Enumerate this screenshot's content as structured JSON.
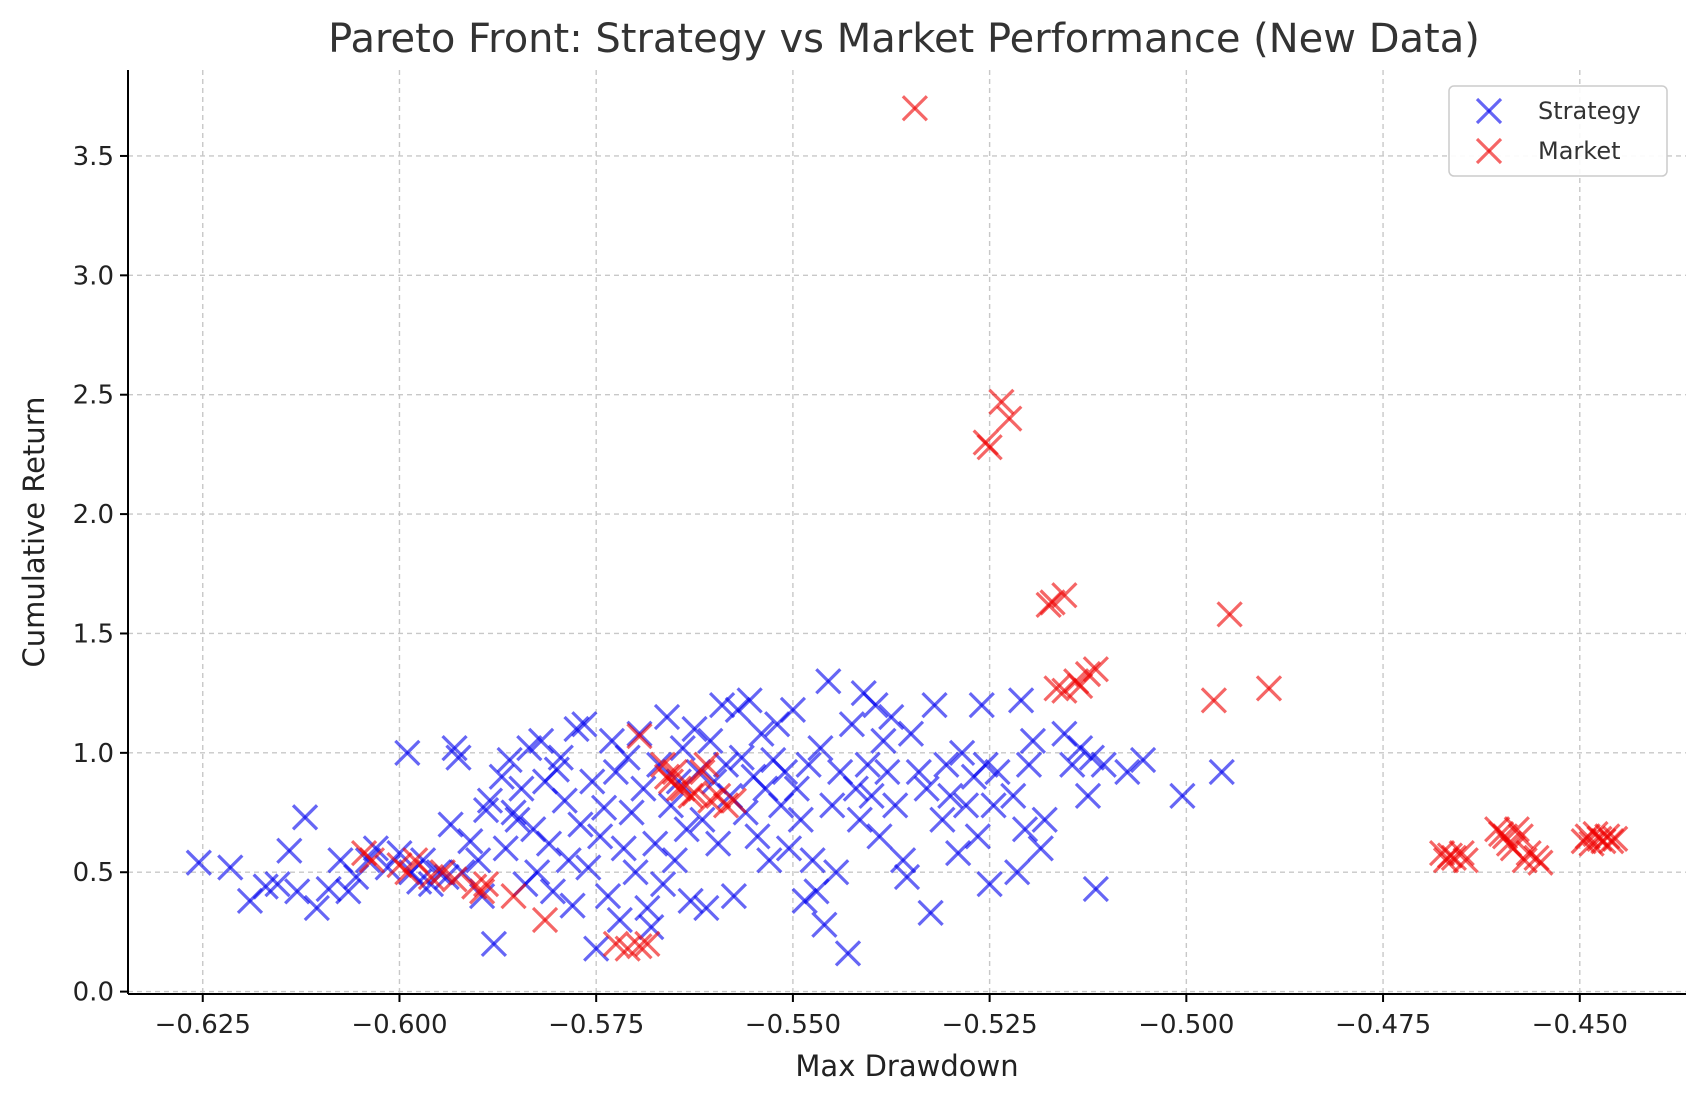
{
  "chart_data": {
    "type": "scatter",
    "title": "Pareto Front: Strategy vs Market Performance (New Data)",
    "xlabel": "Max Drawdown",
    "ylabel": "Cumulative Return",
    "xlim": [
      -0.6345,
      -0.4365
    ],
    "ylim": [
      -0.01,
      3.86
    ],
    "x_ticks": [
      -0.625,
      -0.6,
      -0.575,
      -0.55,
      -0.525,
      -0.5,
      -0.475,
      -0.45
    ],
    "x_tick_labels": [
      "−0.625",
      "−0.600",
      "−0.575",
      "−0.550",
      "−0.525",
      "−0.500",
      "−0.475",
      "−0.450"
    ],
    "y_ticks": [
      0.0,
      0.5,
      1.0,
      1.5,
      2.0,
      2.5,
      3.0,
      3.5
    ],
    "y_tick_labels": [
      "0.0",
      "0.5",
      "1.0",
      "1.5",
      "2.0",
      "2.5",
      "3.0",
      "3.5"
    ],
    "grid": true,
    "legend_position": "top-right",
    "marker": "x",
    "series": [
      {
        "name": "Strategy",
        "color": "#0000ee",
        "points": [
          [
            -0.6255,
            0.54
          ],
          [
            -0.6215,
            0.52
          ],
          [
            -0.619,
            0.38
          ],
          [
            -0.617,
            0.44
          ],
          [
            -0.6155,
            0.45
          ],
          [
            -0.614,
            0.59
          ],
          [
            -0.613,
            0.42
          ],
          [
            -0.612,
            0.73
          ],
          [
            -0.6105,
            0.35
          ],
          [
            -0.609,
            0.43
          ],
          [
            -0.6075,
            0.55
          ],
          [
            -0.6065,
            0.42
          ],
          [
            -0.6055,
            0.48
          ],
          [
            -0.604,
            0.55
          ],
          [
            -0.603,
            0.6
          ],
          [
            -0.6015,
            0.52
          ],
          [
            -0.6,
            0.58
          ],
          [
            -0.599,
            1.0
          ],
          [
            -0.5985,
            0.5
          ],
          [
            -0.5975,
            0.46
          ],
          [
            -0.597,
            0.55
          ],
          [
            -0.596,
            0.45
          ],
          [
            -0.595,
            0.5
          ],
          [
            -0.594,
            0.48
          ],
          [
            -0.5935,
            0.7
          ],
          [
            -0.593,
            1.02
          ],
          [
            -0.5925,
            0.98
          ],
          [
            -0.592,
            0.5
          ],
          [
            -0.591,
            0.63
          ],
          [
            -0.59,
            0.55
          ],
          [
            -0.5895,
            0.4
          ],
          [
            -0.589,
            0.76
          ],
          [
            -0.5885,
            0.8
          ],
          [
            -0.588,
            0.2
          ],
          [
            -0.587,
            0.9
          ],
          [
            -0.5865,
            0.6
          ],
          [
            -0.586,
            0.97
          ],
          [
            -0.5855,
            0.75
          ],
          [
            -0.585,
            0.72
          ],
          [
            -0.5845,
            0.85
          ],
          [
            -0.584,
            0.45
          ],
          [
            -0.5835,
            1.02
          ],
          [
            -0.583,
            0.68
          ],
          [
            -0.5825,
            0.5
          ],
          [
            -0.582,
            1.05
          ],
          [
            -0.5815,
            0.88
          ],
          [
            -0.581,
            0.62
          ],
          [
            -0.5805,
            0.42
          ],
          [
            -0.58,
            0.93
          ],
          [
            -0.5795,
            0.98
          ],
          [
            -0.579,
            0.8
          ],
          [
            -0.5785,
            0.55
          ],
          [
            -0.578,
            0.36
          ],
          [
            -0.5775,
            1.1
          ],
          [
            -0.577,
            0.7
          ],
          [
            -0.5765,
            1.12
          ],
          [
            -0.576,
            0.52
          ],
          [
            -0.5755,
            0.88
          ],
          [
            -0.575,
            0.18
          ],
          [
            -0.5745,
            0.65
          ],
          [
            -0.574,
            0.77
          ],
          [
            -0.5735,
            0.4
          ],
          [
            -0.573,
            1.05
          ],
          [
            -0.5725,
            0.92
          ],
          [
            -0.572,
            0.3
          ],
          [
            -0.5715,
            0.6
          ],
          [
            -0.571,
            0.98
          ],
          [
            -0.5705,
            0.75
          ],
          [
            -0.57,
            0.5
          ],
          [
            -0.5695,
            1.08
          ],
          [
            -0.569,
            0.85
          ],
          [
            -0.5685,
            0.35
          ],
          [
            -0.568,
            0.27
          ],
          [
            -0.5675,
            0.62
          ],
          [
            -0.567,
            0.95
          ],
          [
            -0.5665,
            0.45
          ],
          [
            -0.566,
            1.15
          ],
          [
            -0.5655,
            0.78
          ],
          [
            -0.565,
            0.55
          ],
          [
            -0.5645,
            0.88
          ],
          [
            -0.564,
            1.02
          ],
          [
            -0.5635,
            0.68
          ],
          [
            -0.563,
            0.38
          ],
          [
            -0.5625,
            1.1
          ],
          [
            -0.562,
            0.92
          ],
          [
            -0.5615,
            0.72
          ],
          [
            -0.561,
            0.35
          ],
          [
            -0.5605,
            1.05
          ],
          [
            -0.56,
            0.88
          ],
          [
            -0.5595,
            0.62
          ],
          [
            -0.559,
            1.2
          ],
          [
            -0.5585,
            0.95
          ],
          [
            -0.558,
            0.82
          ],
          [
            -0.5575,
            0.4
          ],
          [
            -0.557,
            1.18
          ],
          [
            -0.5565,
            0.98
          ],
          [
            -0.556,
            0.75
          ],
          [
            -0.5555,
            1.22
          ],
          [
            -0.555,
            0.9
          ],
          [
            -0.5545,
            0.65
          ],
          [
            -0.554,
            1.08
          ],
          [
            -0.5535,
            0.85
          ],
          [
            -0.553,
            0.55
          ],
          [
            -0.5525,
            0.97
          ],
          [
            -0.552,
            1.12
          ],
          [
            -0.5515,
            0.78
          ],
          [
            -0.551,
            0.92
          ],
          [
            -0.5505,
            0.6
          ],
          [
            -0.55,
            1.18
          ],
          [
            -0.5495,
            0.85
          ],
          [
            -0.549,
            0.72
          ],
          [
            -0.5485,
            0.38
          ],
          [
            -0.548,
            0.95
          ],
          [
            -0.5475,
            0.55
          ],
          [
            -0.547,
            0.42
          ],
          [
            -0.5465,
            1.02
          ],
          [
            -0.546,
            0.28
          ],
          [
            -0.5455,
            1.3
          ],
          [
            -0.545,
            0.78
          ],
          [
            -0.5445,
            0.5
          ],
          [
            -0.544,
            0.92
          ],
          [
            -0.543,
            0.16
          ],
          [
            -0.5425,
            1.12
          ],
          [
            -0.542,
            0.85
          ],
          [
            -0.5415,
            0.72
          ],
          [
            -0.541,
            1.25
          ],
          [
            -0.5405,
            0.95
          ],
          [
            -0.54,
            0.82
          ],
          [
            -0.5395,
            1.2
          ],
          [
            -0.539,
            0.65
          ],
          [
            -0.5385,
            1.05
          ],
          [
            -0.538,
            0.92
          ],
          [
            -0.5375,
            1.15
          ],
          [
            -0.537,
            0.78
          ],
          [
            -0.536,
            0.55
          ],
          [
            -0.5355,
            0.48
          ],
          [
            -0.535,
            1.08
          ],
          [
            -0.534,
            0.92
          ],
          [
            -0.533,
            0.85
          ],
          [
            -0.5325,
            0.33
          ],
          [
            -0.532,
            1.2
          ],
          [
            -0.531,
            0.72
          ],
          [
            -0.5305,
            0.95
          ],
          [
            -0.53,
            0.82
          ],
          [
            -0.529,
            0.58
          ],
          [
            -0.5285,
            1.0
          ],
          [
            -0.528,
            0.78
          ],
          [
            -0.527,
            0.9
          ],
          [
            -0.5265,
            0.65
          ],
          [
            -0.526,
            1.2
          ],
          [
            -0.5255,
            0.95
          ],
          [
            -0.525,
            0.45
          ],
          [
            -0.5245,
            0.78
          ],
          [
            -0.524,
            0.92
          ],
          [
            -0.522,
            0.82
          ],
          [
            -0.5215,
            0.5
          ],
          [
            -0.521,
            1.22
          ],
          [
            -0.5205,
            0.68
          ],
          [
            -0.52,
            0.95
          ],
          [
            -0.5195,
            1.05
          ],
          [
            -0.5185,
            0.6
          ],
          [
            -0.518,
            0.72
          ],
          [
            -0.5155,
            1.08
          ],
          [
            -0.5145,
            0.95
          ],
          [
            -0.5135,
            1.02
          ],
          [
            -0.5125,
            0.82
          ],
          [
            -0.512,
            0.98
          ],
          [
            -0.5115,
            0.43
          ],
          [
            -0.5105,
            0.95
          ],
          [
            -0.5075,
            0.92
          ],
          [
            -0.5055,
            0.97
          ],
          [
            -0.5005,
            0.82
          ],
          [
            -0.4955,
            0.92
          ]
        ]
      },
      {
        "name": "Market",
        "color": "#ee0000",
        "points": [
          [
            -0.6045,
            0.58
          ],
          [
            -0.6035,
            0.55
          ],
          [
            -0.6,
            0.53
          ],
          [
            -0.599,
            0.5
          ],
          [
            -0.598,
            0.55
          ],
          [
            -0.596,
            0.48
          ],
          [
            -0.5945,
            0.5
          ],
          [
            -0.593,
            0.47
          ],
          [
            -0.5905,
            0.44
          ],
          [
            -0.5895,
            0.42
          ],
          [
            -0.589,
            0.45
          ],
          [
            -0.5855,
            0.4
          ],
          [
            -0.5815,
            0.3
          ],
          [
            -0.5725,
            0.2
          ],
          [
            -0.571,
            0.18
          ],
          [
            -0.5695,
            0.19
          ],
          [
            -0.5685,
            0.2
          ],
          [
            -0.5695,
            1.07
          ],
          [
            -0.5665,
            0.95
          ],
          [
            -0.566,
            0.9
          ],
          [
            -0.5655,
            0.88
          ],
          [
            -0.565,
            0.92
          ],
          [
            -0.5645,
            0.85
          ],
          [
            -0.564,
            0.85
          ],
          [
            -0.563,
            0.82
          ],
          [
            -0.5625,
            0.83
          ],
          [
            -0.5615,
            0.92
          ],
          [
            -0.561,
            0.95
          ],
          [
            -0.5605,
            0.8
          ],
          [
            -0.5595,
            0.82
          ],
          [
            -0.5585,
            0.78
          ],
          [
            -0.5575,
            0.8
          ],
          [
            -0.5345,
            3.7
          ],
          [
            -0.5255,
            2.3
          ],
          [
            -0.525,
            2.28
          ],
          [
            -0.5235,
            2.47
          ],
          [
            -0.5225,
            2.4
          ],
          [
            -0.5175,
            1.62
          ],
          [
            -0.517,
            1.63
          ],
          [
            -0.5155,
            1.66
          ],
          [
            -0.5165,
            1.27
          ],
          [
            -0.5155,
            1.26
          ],
          [
            -0.514,
            1.3
          ],
          [
            -0.5135,
            1.28
          ],
          [
            -0.5125,
            1.33
          ],
          [
            -0.5115,
            1.35
          ],
          [
            -0.4965,
            1.22
          ],
          [
            -0.4945,
            1.58
          ],
          [
            -0.4895,
            1.27
          ],
          [
            -0.4675,
            0.58
          ],
          [
            -0.467,
            0.55
          ],
          [
            -0.4665,
            0.57
          ],
          [
            -0.466,
            0.56
          ],
          [
            -0.465,
            0.58
          ],
          [
            -0.4645,
            0.55
          ],
          [
            -0.4605,
            0.68
          ],
          [
            -0.46,
            0.66
          ],
          [
            -0.4595,
            0.65
          ],
          [
            -0.459,
            0.62
          ],
          [
            -0.4585,
            0.6
          ],
          [
            -0.458,
            0.68
          ],
          [
            -0.4575,
            0.65
          ],
          [
            -0.457,
            0.55
          ],
          [
            -0.4565,
            0.58
          ],
          [
            -0.4555,
            0.56
          ],
          [
            -0.455,
            0.54
          ],
          [
            -0.4495,
            0.63
          ],
          [
            -0.449,
            0.65
          ],
          [
            -0.4485,
            0.62
          ],
          [
            -0.448,
            0.66
          ],
          [
            -0.4475,
            0.64
          ],
          [
            -0.447,
            0.63
          ],
          [
            -0.4465,
            0.65
          ],
          [
            -0.446,
            0.63
          ],
          [
            -0.4455,
            0.64
          ]
        ]
      }
    ]
  }
}
